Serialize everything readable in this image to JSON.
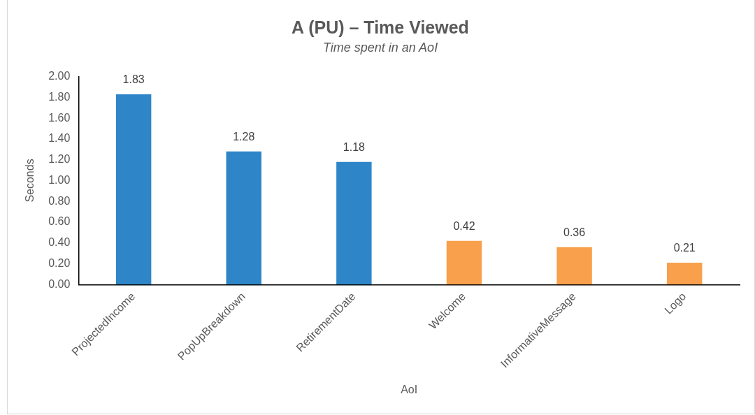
{
  "chart_data": {
    "type": "bar",
    "title": "A (PU) – Time Viewed",
    "subtitle": "Time spent in an AoI",
    "xlabel": "AoI",
    "ylabel": "Seconds",
    "categories": [
      "ProjectedIncome",
      "PopUpBreakdown",
      "RetirementDate",
      "Welcome",
      "InformativeMessage",
      "Logo"
    ],
    "values": [
      1.83,
      1.28,
      1.18,
      0.42,
      0.36,
      0.21
    ],
    "colors": [
      "#2e86c8",
      "#2e86c8",
      "#2e86c8",
      "#f8a04c",
      "#f8a04c",
      "#f8a04c"
    ],
    "ylim": [
      0,
      2
    ],
    "yticks": [
      {
        "value": 0,
        "label": "0.00"
      },
      {
        "value": 0.2,
        "label": "0.20"
      },
      {
        "value": 0.4,
        "label": "0.40"
      },
      {
        "value": 0.6,
        "label": "0.60"
      },
      {
        "value": 0.8,
        "label": "0.80"
      },
      {
        "value": 1,
        "label": "1.00"
      },
      {
        "value": 1.2,
        "label": "1.20"
      },
      {
        "value": 1.4,
        "label": "1.40"
      },
      {
        "value": 1.6,
        "label": "1.60"
      },
      {
        "value": 1.8,
        "label": "1.80"
      },
      {
        "value": 2,
        "label": "2.00"
      }
    ],
    "data_labels": true,
    "grid": false,
    "legend": false
  }
}
